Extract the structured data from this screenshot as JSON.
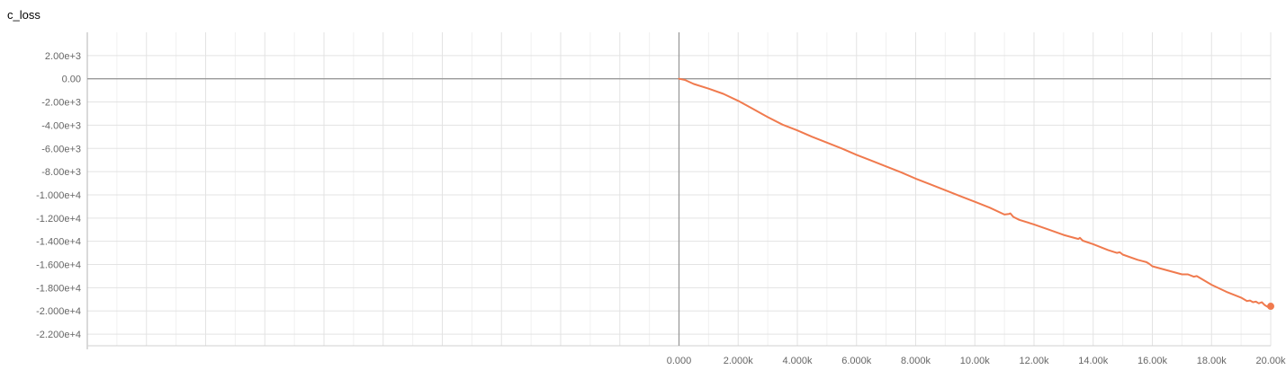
{
  "chart_data": {
    "type": "line",
    "title": "c_loss",
    "xlabel": "",
    "ylabel": "",
    "xlim": [
      -20000,
      20000
    ],
    "ylim": [
      -23000,
      4000
    ],
    "x_ticks": [
      "0.000",
      "2.000k",
      "4.000k",
      "6.000k",
      "8.000k",
      "10.00k",
      "12.00k",
      "14.00k",
      "16.00k",
      "18.00k",
      "20.00k"
    ],
    "x_tick_values": [
      0,
      2000,
      4000,
      6000,
      8000,
      10000,
      12000,
      14000,
      16000,
      18000,
      20000
    ],
    "y_ticks": [
      "2.00e+3",
      "0.00",
      "-2.00e+3",
      "-4.00e+3",
      "-6.00e+3",
      "-8.00e+3",
      "-1.000e+4",
      "-1.200e+4",
      "-1.400e+4",
      "-1.600e+4",
      "-1.800e+4",
      "-2.000e+4",
      "-2.200e+4"
    ],
    "y_tick_values": [
      2000,
      0,
      -2000,
      -4000,
      -6000,
      -8000,
      -10000,
      -12000,
      -14000,
      -16000,
      -18000,
      -20000,
      -22000
    ],
    "grid": true,
    "series": [
      {
        "color": "#f07a4e",
        "x": [
          0,
          200,
          500,
          1000,
          1500,
          2000,
          2500,
          3000,
          3500,
          4000,
          4500,
          5000,
          5500,
          6000,
          6500,
          7000,
          7500,
          8000,
          8500,
          9000,
          9500,
          10000,
          10500,
          11000,
          11150,
          11200,
          11300,
          11500,
          12000,
          12500,
          13000,
          13500,
          13550,
          13650,
          14000,
          14500,
          14800,
          14900,
          15000,
          15500,
          15800,
          15900,
          16000,
          16500,
          17000,
          17200,
          17400,
          17500,
          18000,
          18500,
          18800,
          19000,
          19200,
          19300,
          19400,
          19500,
          19600,
          19700,
          19800,
          19900,
          20000
        ],
        "y": [
          0,
          -100,
          -450,
          -850,
          -1300,
          -1900,
          -2600,
          -3300,
          -3950,
          -4450,
          -5000,
          -5500,
          -6000,
          -6550,
          -7050,
          -7550,
          -8050,
          -8600,
          -9100,
          -9600,
          -10100,
          -10600,
          -11100,
          -11700,
          -11650,
          -11600,
          -11900,
          -12150,
          -12550,
          -13000,
          -13450,
          -13800,
          -13700,
          -13950,
          -14250,
          -14750,
          -15000,
          -14950,
          -15150,
          -15600,
          -15800,
          -15950,
          -16150,
          -16500,
          -16850,
          -16850,
          -17050,
          -17000,
          -17750,
          -18350,
          -18650,
          -18850,
          -19150,
          -19100,
          -19250,
          -19200,
          -19350,
          -19250,
          -19500,
          -19650,
          -19600
        ]
      }
    ]
  }
}
